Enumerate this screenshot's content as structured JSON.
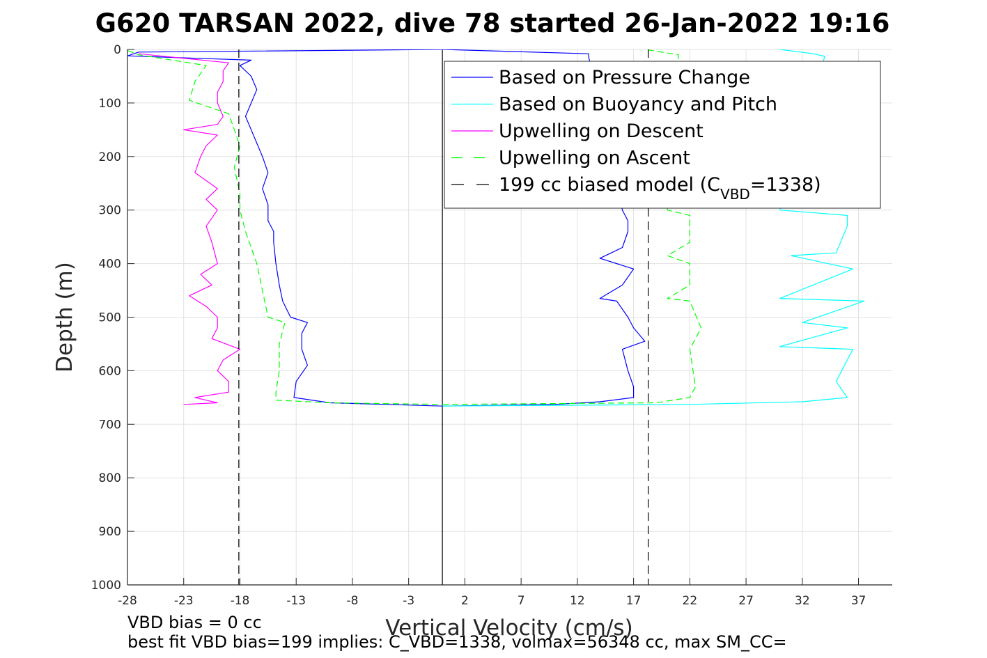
{
  "chart_data": {
    "type": "line",
    "title": "G620 TARSAN 2022, dive 78 started 26-Jan-2022 19:16",
    "xlabel": "Vertical Velocity (cm/s)",
    "ylabel": "Depth (m)",
    "xlim": [
      -28,
      40
    ],
    "ylim": [
      0,
      1000
    ],
    "y_reversed": true,
    "grid": true,
    "xticks": [
      -28,
      -23,
      -18,
      -13,
      -8,
      -3,
      2,
      7,
      12,
      17,
      22,
      27,
      32,
      37
    ],
    "xtick_labels": [
      "-28",
      "-23",
      "-18",
      "-13",
      "-8",
      "-3",
      "2",
      "7",
      "12",
      "17",
      "22",
      "27",
      "32",
      "37"
    ],
    "yticks": [
      0,
      100,
      200,
      300,
      400,
      500,
      600,
      700,
      800,
      900,
      1000
    ],
    "ytick_labels": [
      "0",
      "100",
      "200",
      "300",
      "400",
      "500",
      "600",
      "700",
      "800",
      "900",
      "1000"
    ],
    "legend_placement": "top-right",
    "series": [
      {
        "name": "Based on Pressure Change",
        "color": "#0000ff",
        "style": "solid",
        "descent": {
          "depth": [
            0,
            5,
            12,
            20,
            30,
            50,
            75,
            100,
            125,
            150,
            175,
            200,
            230,
            260,
            290,
            320,
            340,
            360,
            400,
            440,
            470,
            500,
            510,
            530,
            560,
            590,
            620,
            650,
            660,
            663,
            666
          ],
          "velocity": [
            0,
            -27,
            -28,
            -17,
            -18,
            -17,
            -16.5,
            -17,
            -17.5,
            -17,
            -16.5,
            -16,
            -15.5,
            -16,
            -15.5,
            -15.5,
            -15,
            -15,
            -14.8,
            -14.5,
            -14.2,
            -13.5,
            -12,
            -12.5,
            -12.5,
            -12,
            -13,
            -13.2,
            -10,
            -5,
            0
          ]
        },
        "ascent": {
          "depth": [
            666,
            663,
            658,
            650,
            630,
            600,
            560,
            545,
            520,
            500,
            470,
            465,
            440,
            410,
            390,
            370,
            340,
            320,
            300,
            13,
            8,
            0
          ],
          "velocity": [
            0,
            10,
            14,
            17,
            17,
            16.5,
            16,
            18,
            17,
            16.5,
            15.5,
            14,
            16,
            17,
            14,
            16,
            16.5,
            16.5,
            16,
            13,
            13,
            0
          ]
        }
      },
      {
        "name": "Based on Buoyancy and Pitch",
        "color": "#00ffff",
        "style": "solid",
        "ascent": {
          "depth": [
            666,
            663,
            658,
            650,
            620,
            560,
            555,
            520,
            510,
            470,
            465,
            410,
            385,
            380,
            330,
            310,
            300,
            13,
            8,
            0
          ],
          "velocity": [
            0,
            22,
            32,
            36,
            35,
            36.5,
            30,
            36,
            32,
            37.5,
            30,
            36.5,
            31,
            35,
            36,
            36,
            30,
            34,
            33,
            30
          ]
        }
      },
      {
        "name": "Upwelling on Descent",
        "color": "#ff00ff",
        "style": "solid",
        "descent": {
          "depth": [
            8,
            25,
            40,
            60,
            80,
            100,
            125,
            140,
            150,
            160,
            180,
            200,
            230,
            260,
            280,
            300,
            330,
            360,
            400,
            420,
            440,
            460,
            480,
            500,
            520,
            540,
            560,
            580,
            600,
            620,
            640,
            650,
            660,
            663
          ],
          "velocity": [
            -27,
            -19,
            -19.5,
            -19.5,
            -20,
            -20,
            -19.5,
            -20,
            -23,
            -20,
            -21,
            -21.5,
            -22,
            -20,
            -21,
            -20,
            -21,
            -20.5,
            -20,
            -21.5,
            -20.5,
            -22.5,
            -21,
            -20,
            -20,
            -20.5,
            -18,
            -19.5,
            -20,
            -19,
            -19,
            -22,
            -20,
            -23
          ]
        }
      },
      {
        "name": "Upwelling on Ascent",
        "color": "#00ff00",
        "style": "dashed",
        "descent": {
          "depth": [
            2,
            10,
            30,
            60,
            95,
            120,
            150,
            180,
            220,
            270,
            300,
            340,
            400,
            450,
            500,
            510,
            550,
            600,
            640,
            655,
            660,
            663
          ],
          "velocity": [
            -28,
            -27,
            -21,
            -22,
            -22.5,
            -19,
            -18.5,
            -18,
            -18.5,
            -18,
            -18,
            -17.5,
            -16.5,
            -16,
            -15.5,
            -14,
            -14.5,
            -14.5,
            -14.8,
            -14.8,
            -10,
            0
          ]
        },
        "ascent": {
          "depth": [
            663,
            660,
            650,
            630,
            560,
            520,
            470,
            465,
            440,
            400,
            385,
            360,
            320,
            310,
            300,
            10,
            0
          ],
          "velocity": [
            0,
            19,
            22,
            22.5,
            22,
            23,
            22,
            20,
            22,
            22,
            20,
            22,
            22,
            22,
            20,
            21,
            18
          ]
        }
      },
      {
        "name": "199 cc biased model (C",
        "name_sub": "VBD",
        "name_suffix": "=1338)",
        "color": "#000000",
        "style": "dashed",
        "lines": [
          {
            "velocity": -18.1,
            "depth": [
              0,
              1000
            ]
          },
          {
            "velocity": 18.3,
            "depth": [
              0,
              1000
            ]
          }
        ]
      }
    ],
    "reference_line": {
      "velocity": 0,
      "depth": [
        0,
        1000
      ],
      "color": "#000000"
    },
    "annotations": {
      "vbd_bias": "VBD bias = 0 cc",
      "best_fit": "best fit VBD bias=199 implies: C_VBD=1338, volmax=56348 cc, max SM_CC="
    }
  }
}
